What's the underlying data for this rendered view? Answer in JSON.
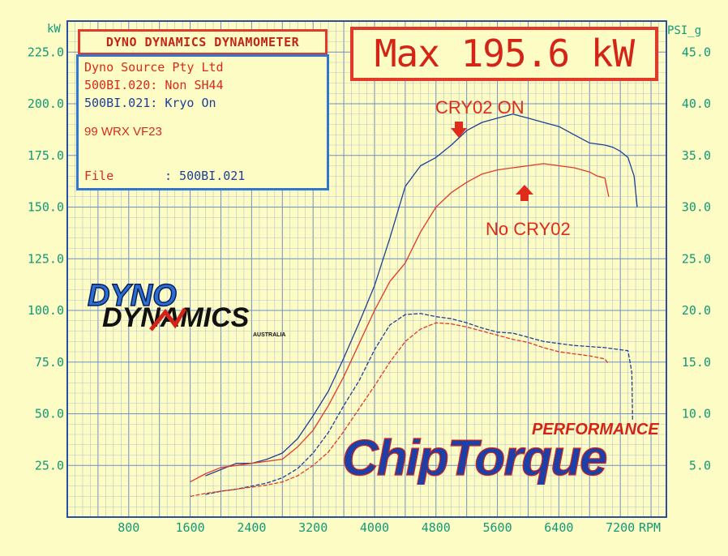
{
  "header": {
    "title": "DYNO DYNAMICS DYNAMOMETER",
    "max_label": "Max 195.6 kW"
  },
  "info": {
    "company": "Dyno Source Pty Ltd",
    "run1": "500BI.020: Non SH44",
    "run2": "500BI.021: Kryo On",
    "car": "99 WRX VF23",
    "file_label": "File",
    "file_value": ": 500BI.021"
  },
  "annotations": {
    "on_label": "CRY02 ON",
    "off_label": "No CRY02"
  },
  "logos": {
    "dyno_line1": "DYNO",
    "dyno_line2": "DYNAMICS",
    "dyno_sub": "AUSTRALIA",
    "chip_main": "ChipTorque",
    "chip_sub": "PERFORMANCE"
  },
  "colors": {
    "background": "#fdfcc4",
    "grid_major": "#6f8fc8",
    "axis_text": "#109a7a",
    "border": "#2a4ea0",
    "red_series": "#e23a2a",
    "blue_series": "#1d3f9a"
  },
  "chart_data": {
    "type": "line",
    "x_unit": "RPM",
    "y_left_unit": "kW",
    "y_right_unit": "PSI_g",
    "xlim": [
      0,
      7800
    ],
    "ylim_left": [
      0,
      240
    ],
    "ylim_right": [
      0,
      48
    ],
    "x_ticks": [
      800,
      1600,
      2400,
      3200,
      4000,
      4800,
      5600,
      6400,
      7200
    ],
    "y_left_ticks": [
      25.0,
      50.0,
      75.0,
      100.0,
      125.0,
      150.0,
      175.0,
      200.0,
      225.0
    ],
    "y_right_ticks": [
      5.0,
      10.0,
      15.0,
      20.0,
      25.0,
      30.0,
      35.0,
      40.0,
      45.0
    ],
    "grid": true,
    "series": [
      {
        "name": "500BI.021: Kryo On",
        "axis": "left",
        "color": "#1d3f9a",
        "x": [
          1800,
          2000,
          2200,
          2400,
          2600,
          2800,
          3000,
          3200,
          3400,
          3600,
          3800,
          4000,
          4200,
          4400,
          4600,
          4800,
          5000,
          5200,
          5400,
          5600,
          5800,
          6000,
          6200,
          6400,
          6600,
          6800,
          7000,
          7100,
          7200,
          7300,
          7380,
          7420
        ],
        "y": [
          20,
          23,
          26,
          26,
          28,
          31,
          38,
          49,
          61,
          77,
          94,
          112,
          135,
          160,
          170,
          174,
          180,
          187,
          191,
          193,
          195,
          193,
          191,
          189,
          185,
          181,
          180,
          179,
          177,
          174,
          165,
          150
        ]
      },
      {
        "name": "500BI.020: Non SH44",
        "axis": "left",
        "color": "#e23a2a",
        "x": [
          1600,
          1800,
          2000,
          2200,
          2400,
          2600,
          2800,
          3000,
          3200,
          3400,
          3600,
          3800,
          4000,
          4200,
          4400,
          4600,
          4800,
          5000,
          5200,
          5400,
          5600,
          5800,
          6000,
          6200,
          6400,
          6600,
          6800,
          6900,
          7000,
          7050
        ],
        "y": [
          17,
          21,
          24,
          25,
          26,
          27,
          28,
          34,
          42,
          54,
          68,
          84,
          100,
          114,
          123,
          138,
          150,
          157,
          162,
          166,
          168,
          169,
          170,
          171,
          170,
          169,
          167,
          165,
          164,
          155
        ]
      },
      {
        "name": "500BI.021 Boost",
        "axis": "right",
        "color": "#1d3f9a",
        "x": [
          1800,
          2000,
          2200,
          2400,
          2600,
          2800,
          3000,
          3200,
          3400,
          3600,
          3800,
          4000,
          4200,
          4400,
          4600,
          4800,
          5000,
          5200,
          5400,
          5600,
          5800,
          6000,
          6200,
          6400,
          6600,
          6800,
          7000,
          7200,
          7300,
          7350,
          7360
        ],
        "y": [
          2.2,
          2.5,
          2.7,
          3.0,
          3.3,
          3.8,
          4.7,
          6.2,
          8.2,
          10.8,
          13.2,
          16.2,
          18.6,
          19.6,
          19.7,
          19.4,
          19.2,
          18.8,
          18.3,
          17.9,
          17.8,
          17.4,
          17.0,
          16.8,
          16.6,
          16.5,
          16.4,
          16.2,
          16.1,
          14,
          9.3
        ]
      },
      {
        "name": "500BI.020 Boost",
        "axis": "right",
        "color": "#e23a2a",
        "x": [
          1600,
          1800,
          2000,
          2200,
          2400,
          2600,
          2800,
          3000,
          3200,
          3400,
          3600,
          3800,
          4000,
          4200,
          4400,
          4600,
          4800,
          5000,
          5200,
          5400,
          5600,
          5800,
          6000,
          6200,
          6400,
          6600,
          6800,
          7000,
          7050
        ],
        "y": [
          2.0,
          2.3,
          2.5,
          2.7,
          2.9,
          3.1,
          3.4,
          4.0,
          5.0,
          6.3,
          8.3,
          10.5,
          12.7,
          15.0,
          17.0,
          18.2,
          18.8,
          18.7,
          18.4,
          18.0,
          17.6,
          17.2,
          16.9,
          16.4,
          16.0,
          15.8,
          15.6,
          15.3,
          14.8
        ]
      }
    ]
  }
}
